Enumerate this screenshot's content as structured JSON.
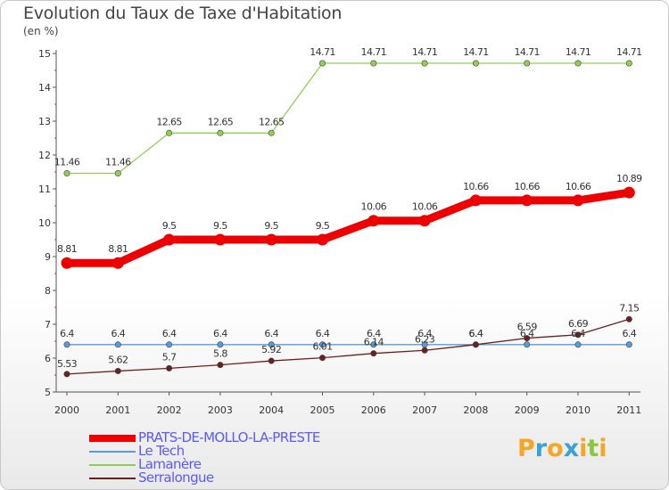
{
  "title": "Evolution du Taux de Taxe d'Habitation",
  "unit": "(en %)",
  "logo": {
    "letters": [
      "P",
      "r",
      "o",
      "x",
      "i",
      "t",
      "i"
    ],
    "colors": [
      "#f5a623",
      "#3aa0d8",
      "#f5a623",
      "#3aa0d8",
      "#f5a623",
      "#8cc63f",
      "#f5a623"
    ]
  },
  "chart_data": {
    "type": "line",
    "title": "Evolution du Taux de Taxe d'Habitation",
    "ylabel": "(en %)",
    "xlabel": "",
    "categories": [
      "2000",
      "2001",
      "2002",
      "2003",
      "2004",
      "2005",
      "2006",
      "2007",
      "2008",
      "2009",
      "2010",
      "2011"
    ],
    "ylim": [
      5,
      15
    ],
    "yticks": [
      "5",
      "6",
      "7",
      "8",
      "9",
      "10",
      "11",
      "12",
      "13",
      "14",
      "15"
    ],
    "grid": false,
    "legend_position": "bottom-left",
    "series": [
      {
        "name": "PRATS-DE-MOLLO-LA-PRESTE",
        "color": "#ee0000",
        "emphasis": true,
        "values": [
          8.81,
          8.81,
          9.5,
          9.5,
          9.5,
          9.5,
          10.06,
          10.06,
          10.66,
          10.66,
          10.66,
          10.89
        ],
        "labels": [
          "8.81",
          "8.81",
          "9.5",
          "9.5",
          "9.5",
          "9.5",
          "10.06",
          "10.06",
          "10.66",
          "10.66",
          "10.66",
          "10.89"
        ]
      },
      {
        "name": "Le Tech",
        "color": "#5b9bd5",
        "emphasis": false,
        "values": [
          6.4,
          6.4,
          6.4,
          6.4,
          6.4,
          6.4,
          6.4,
          6.4,
          6.4,
          6.4,
          6.4,
          6.4
        ],
        "labels": [
          "6.4",
          "6.4",
          "6.4",
          "6.4",
          "6.4",
          "6.4",
          "6.4",
          "6.4",
          "6.4",
          "6.4",
          "6.4",
          "6.4"
        ]
      },
      {
        "name": "Lamanère",
        "color": "#8fd053",
        "emphasis": false,
        "values": [
          11.46,
          11.46,
          12.65,
          12.65,
          12.65,
          14.71,
          14.71,
          14.71,
          14.71,
          14.71,
          14.71,
          14.71
        ],
        "labels": [
          "11.46",
          "11.46",
          "12.65",
          "12.65",
          "12.65",
          "14.71",
          "14.71",
          "14.71",
          "14.71",
          "14.71",
          "14.71",
          "14.71"
        ]
      },
      {
        "name": "Serralongue",
        "color": "#6b2020",
        "emphasis": false,
        "values": [
          5.53,
          5.62,
          5.7,
          5.8,
          5.92,
          6.01,
          6.14,
          6.23,
          6.4,
          6.59,
          6.69,
          7.15
        ],
        "labels": [
          "5.53",
          "5.62",
          "5.7",
          "5.8",
          "5.92",
          "6.01",
          "6.14",
          "6.23",
          "6.4",
          "6.59",
          "6.69",
          "7.15"
        ]
      }
    ]
  }
}
